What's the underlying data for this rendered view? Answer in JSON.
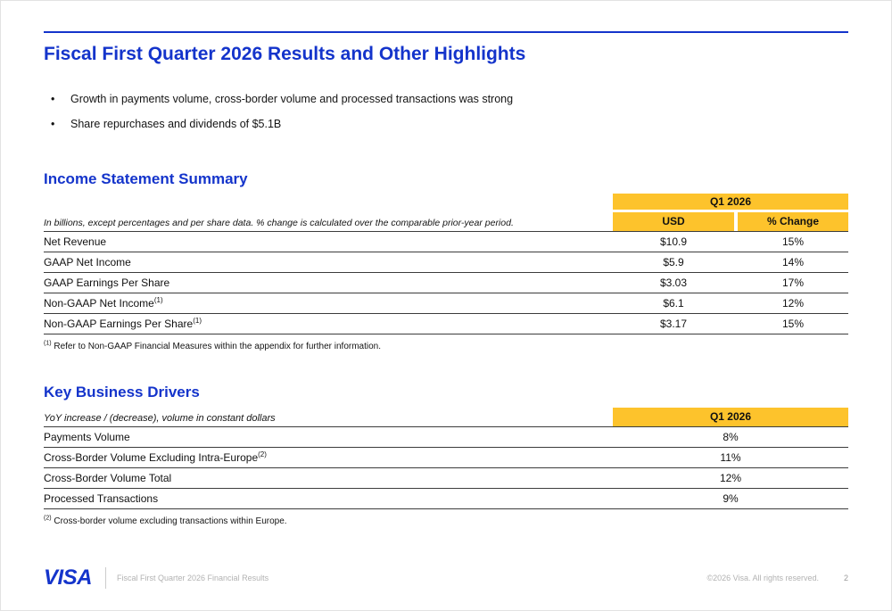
{
  "colors": {
    "brand_blue": "#1434CB",
    "gold": "#FDC32C"
  },
  "title": "Fiscal First Quarter 2026 Results and Other Highlights",
  "bullets": [
    "Growth in payments volume, cross-border volume and processed transactions was strong",
    "Share repurchases and dividends of $5.1B"
  ],
  "income_statement": {
    "heading": "Income Statement Summary",
    "period_header": "Q1 2026",
    "col_headers": [
      "USD",
      "% Change"
    ],
    "description": "In billions, except percentages and per share data. % change is calculated over the comparable prior-year period.",
    "rows": [
      {
        "label": "Net Revenue",
        "sup": "",
        "usd": "$10.9",
        "change": "15%"
      },
      {
        "label": "GAAP Net Income",
        "sup": "",
        "usd": "$5.9",
        "change": "14%"
      },
      {
        "label": "GAAP Earnings Per Share",
        "sup": "",
        "usd": "$3.03",
        "change": "17%"
      },
      {
        "label": "Non-GAAP Net Income",
        "sup": "(1)",
        "usd": "$6.1",
        "change": "12%"
      },
      {
        "label": "Non-GAAP Earnings Per Share",
        "sup": "(1)",
        "usd": "$3.17",
        "change": "15%"
      }
    ],
    "footnote_sup": "(1)",
    "footnote": " Refer to Non-GAAP Financial Measures within the appendix for further information."
  },
  "key_business_drivers": {
    "heading": "Key Business Drivers",
    "period_header": "Q1 2026",
    "description": "YoY increase / (decrease), volume in constant dollars",
    "rows": [
      {
        "label": "Payments Volume",
        "sup": "",
        "value": "8%"
      },
      {
        "label": "Cross-Border Volume Excluding Intra-Europe",
        "sup": "(2)",
        "value": "11%"
      },
      {
        "label": "Cross-Border Volume Total",
        "sup": "",
        "value": "12%"
      },
      {
        "label": "Processed Transactions",
        "sup": "",
        "value": "9%"
      }
    ],
    "footnote_sup": "(2)",
    "footnote": " Cross-border volume excluding transactions within Europe."
  },
  "footer": {
    "logo": "VISA",
    "left_text": "Fiscal First Quarter 2026 Financial Results",
    "copyright": "©2026 Visa. All rights reserved.",
    "page_number": "2"
  }
}
